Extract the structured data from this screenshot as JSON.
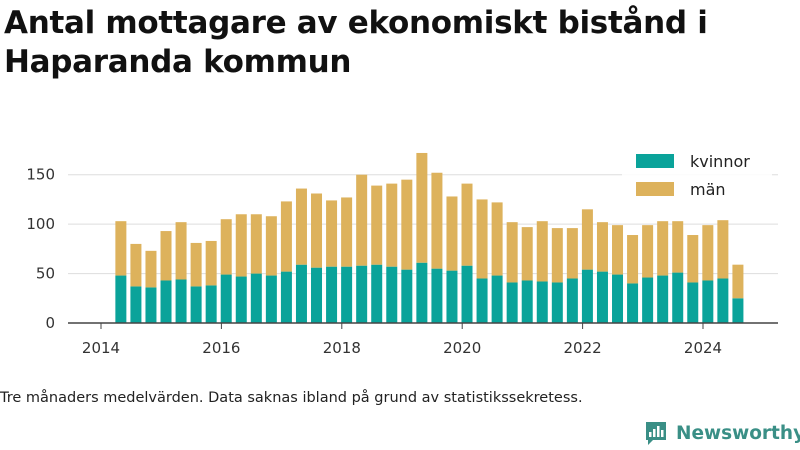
{
  "header": {
    "title": "Antal mottagare av ekonomiskt bistånd i Haparanda kommun"
  },
  "footer": {
    "note": "Tre månaders medelvärden. Data saknas ibland på grund av statistikssekretess.",
    "brand": "Newsworthy"
  },
  "colors": {
    "kvinnor": "#0aa39a",
    "man": "#ddb25c",
    "axis": "#444444",
    "grid": "#dddddd",
    "brand": "#3a8f86"
  },
  "chart_data": {
    "type": "bar",
    "stacked": true,
    "title": "Antal mottagare av ekonomiskt bistånd i Haparanda kommun",
    "xlabel": "",
    "ylabel": "",
    "x_ticks": [
      "2014",
      "2016",
      "2018",
      "2020",
      "2022",
      "2024"
    ],
    "y_ticks": [
      "0",
      "50",
      "100",
      "150"
    ],
    "ylim": [
      0,
      175
    ],
    "xlim": [
      2013.5,
      2025.2
    ],
    "grid": "horizontal",
    "legend_position": "top-right",
    "x": [
      2014.33,
      2014.58,
      2014.83,
      2015.08,
      2015.33,
      2015.58,
      2015.83,
      2016.08,
      2016.33,
      2016.58,
      2016.83,
      2017.08,
      2017.33,
      2017.58,
      2017.83,
      2018.08,
      2018.33,
      2018.58,
      2018.83,
      2019.08,
      2019.33,
      2019.58,
      2019.83,
      2020.08,
      2020.33,
      2020.58,
      2020.83,
      2021.08,
      2021.33,
      2021.58,
      2021.83,
      2022.08,
      2022.33,
      2022.58,
      2022.83,
      2023.08,
      2023.33,
      2023.58,
      2023.83,
      2024.08,
      2024.33,
      2024.58
    ],
    "series": [
      {
        "name": "kvinnor",
        "values": [
          48,
          37,
          36,
          43,
          44,
          37,
          38,
          49,
          47,
          50,
          48,
          52,
          59,
          56,
          57,
          57,
          58,
          59,
          57,
          54,
          61,
          55,
          53,
          58,
          45,
          48,
          41,
          43,
          42,
          41,
          45,
          54,
          52,
          49,
          40,
          46,
          48,
          51,
          41,
          43,
          45,
          25
        ]
      },
      {
        "name": "män",
        "values": [
          55,
          43,
          37,
          50,
          58,
          44,
          45,
          56,
          63,
          60,
          60,
          71,
          77,
          75,
          67,
          70,
          92,
          80,
          84,
          91,
          111,
          97,
          75,
          83,
          80,
          74,
          61,
          54,
          61,
          55,
          51,
          61,
          50,
          50,
          49,
          53,
          55,
          52,
          48,
          56,
          59,
          34
        ]
      }
    ]
  }
}
